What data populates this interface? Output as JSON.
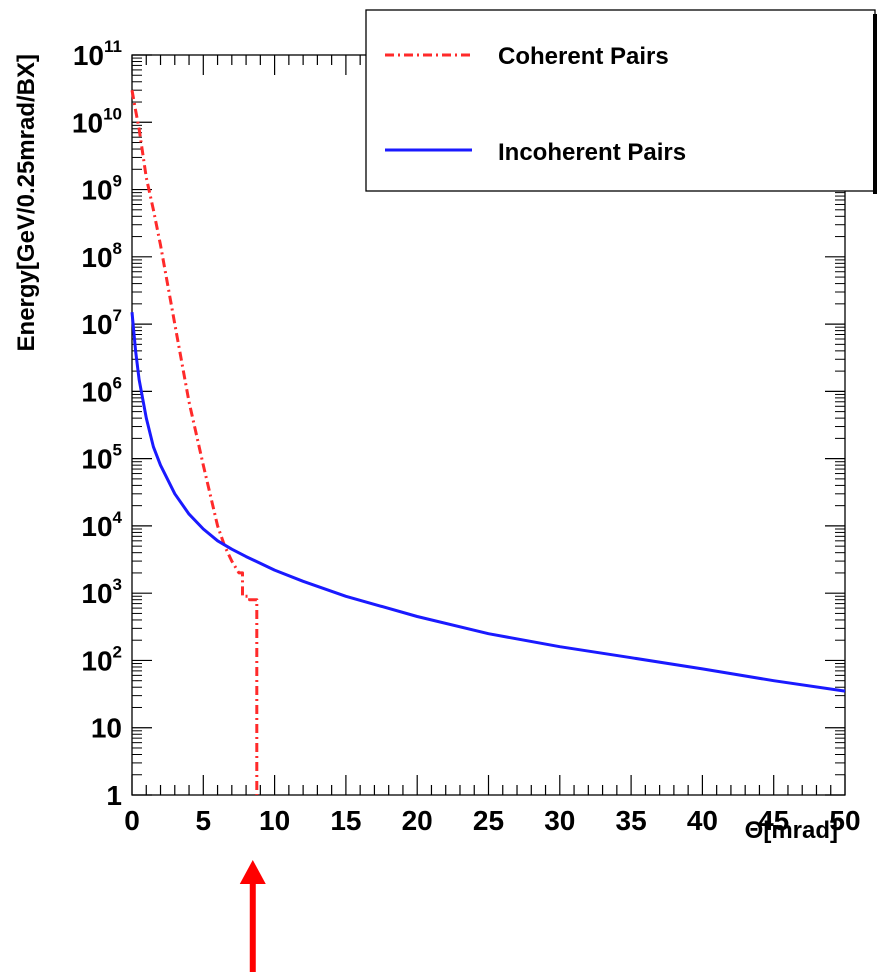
{
  "chart_data": {
    "type": "line",
    "title": "",
    "xlabel": "Θ[mrad]",
    "ylabel": "Energy[GeV/0.25mrad/BX]",
    "xlim": [
      0,
      50
    ],
    "ylim": [
      1,
      100000000000.0
    ],
    "yscale": "log",
    "grid": false,
    "legend_position": "top-right",
    "x_ticks": [
      "0",
      "5",
      "10",
      "15",
      "20",
      "25",
      "30",
      "35",
      "40",
      "45",
      "50"
    ],
    "y_ticks": [
      {
        "base": "1",
        "exp": ""
      },
      {
        "base": "10",
        "exp": ""
      },
      {
        "base": "10",
        "exp": "2"
      },
      {
        "base": "10",
        "exp": "3"
      },
      {
        "base": "10",
        "exp": "4"
      },
      {
        "base": "10",
        "exp": "5"
      },
      {
        "base": "10",
        "exp": "6"
      },
      {
        "base": "10",
        "exp": "7"
      },
      {
        "base": "10",
        "exp": "8"
      },
      {
        "base": "10",
        "exp": "9"
      },
      {
        "base": "10",
        "exp": "10"
      },
      {
        "base": "10",
        "exp": "11"
      }
    ],
    "series": [
      {
        "name": "Coherent Pairs",
        "color": "#ff2a2a",
        "style": "dash-dot",
        "x": [
          0,
          0.25,
          0.5,
          1,
          1.5,
          2,
          3,
          4,
          5,
          6,
          6.5,
          7,
          7.5,
          7.75,
          7.75,
          8.25,
          8.25,
          8.75,
          8.75
        ],
        "y": [
          30000000000.0,
          15000000000.0,
          8000000000.0,
          1500000000.0,
          500000000.0,
          150000000.0,
          10000000.0,
          700000.0,
          80000.0,
          10000.0,
          5000.0,
          3000.0,
          2000.0,
          2000.0,
          900,
          900,
          800,
          800,
          1
        ]
      },
      {
        "name": "Incoherent Pairs",
        "color": "#1a1aff",
        "style": "solid",
        "x": [
          0,
          0.25,
          0.5,
          1,
          1.5,
          2,
          3,
          4,
          5,
          6,
          7,
          8,
          10,
          12,
          15,
          20,
          25,
          30,
          35,
          40,
          45,
          50
        ],
        "y": [
          15000000.0,
          4000000.0,
          1500000.0,
          400000.0,
          150000.0,
          80000.0,
          30000.0,
          15000.0,
          9000.0,
          6000.0,
          4500.0,
          3500.0,
          2200.0,
          1500.0,
          900,
          450,
          250,
          160,
          110,
          75,
          50,
          35
        ]
      }
    ]
  },
  "annotation": {
    "arrow_color": "#ff0000",
    "arrow_x_value": 8.75
  }
}
